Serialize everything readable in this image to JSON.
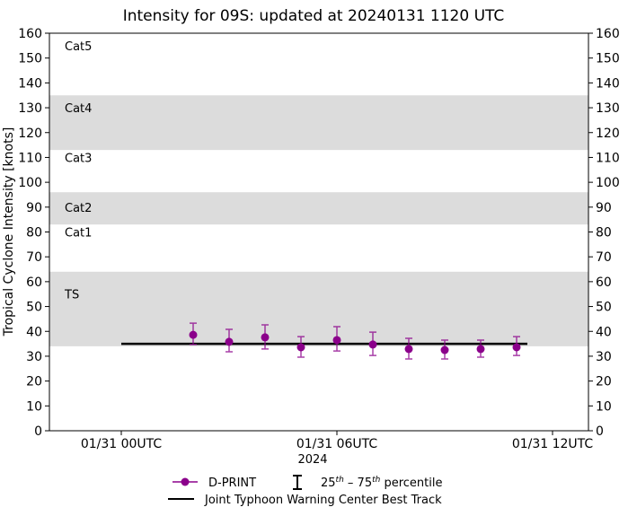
{
  "chart_data": {
    "type": "scatter",
    "title": "Intensity for 09S: updated at 20240131 1120 UTC",
    "ylabel": "Tropical Cyclone Intensity [knots]",
    "xlabel": "2024",
    "ylim": [
      0,
      160
    ],
    "xlim_hours": [
      -2,
      13
    ],
    "yticks": [
      0,
      10,
      20,
      30,
      40,
      50,
      60,
      70,
      80,
      90,
      100,
      110,
      120,
      130,
      140,
      150,
      160
    ],
    "xticks": [
      {
        "hour": 0,
        "label": "01/31 00UTC"
      },
      {
        "hour": 6,
        "label": "01/31 06UTC"
      },
      {
        "hour": 12,
        "label": "01/31 12UTC"
      }
    ],
    "bands": [
      {
        "label": "TS",
        "from": 34,
        "to": 64,
        "shaded": true,
        "label_y": 55
      },
      {
        "label": "Cat1",
        "from": 64,
        "to": 83,
        "shaded": false,
        "label_y": 80
      },
      {
        "label": "Cat2",
        "from": 83,
        "to": 96,
        "shaded": true,
        "label_y": 90
      },
      {
        "label": "Cat3",
        "from": 96,
        "to": 113,
        "shaded": false,
        "label_y": 110
      },
      {
        "label": "Cat4",
        "from": 113,
        "to": 135,
        "shaded": true,
        "label_y": 130
      },
      {
        "label": "Cat5",
        "from": 135,
        "to": 160,
        "shaded": false,
        "label_y": 155
      }
    ],
    "series": [
      {
        "name": "D-PRINT",
        "color": "#8b008b",
        "hours": [
          2,
          3,
          4,
          5,
          6,
          7,
          8,
          9,
          10,
          11
        ],
        "values": [
          38.6,
          35.8,
          37.6,
          33.6,
          36.5,
          34.7,
          32.9,
          32.5,
          32.9,
          33.6
        ],
        "p25": [
          34.7,
          31.8,
          32.9,
          29.6,
          32.1,
          30.3,
          28.9,
          28.9,
          29.6,
          30.3
        ],
        "p75": [
          43.3,
          40.8,
          42.6,
          37.9,
          41.9,
          39.7,
          37.2,
          36.5,
          36.5,
          37.9
        ]
      },
      {
        "name": "Joint Typhoon Warning Center Best Track",
        "color": "#000000",
        "hours": [
          0,
          11.3
        ],
        "values": [
          35,
          35
        ]
      }
    ],
    "legend": {
      "placement": "bottom-center",
      "percentile_label_prefix": "25",
      "percentile_label_mid": "th",
      "percentile_label_sep": " – 75",
      "percentile_label_suffix": " percentile"
    }
  }
}
